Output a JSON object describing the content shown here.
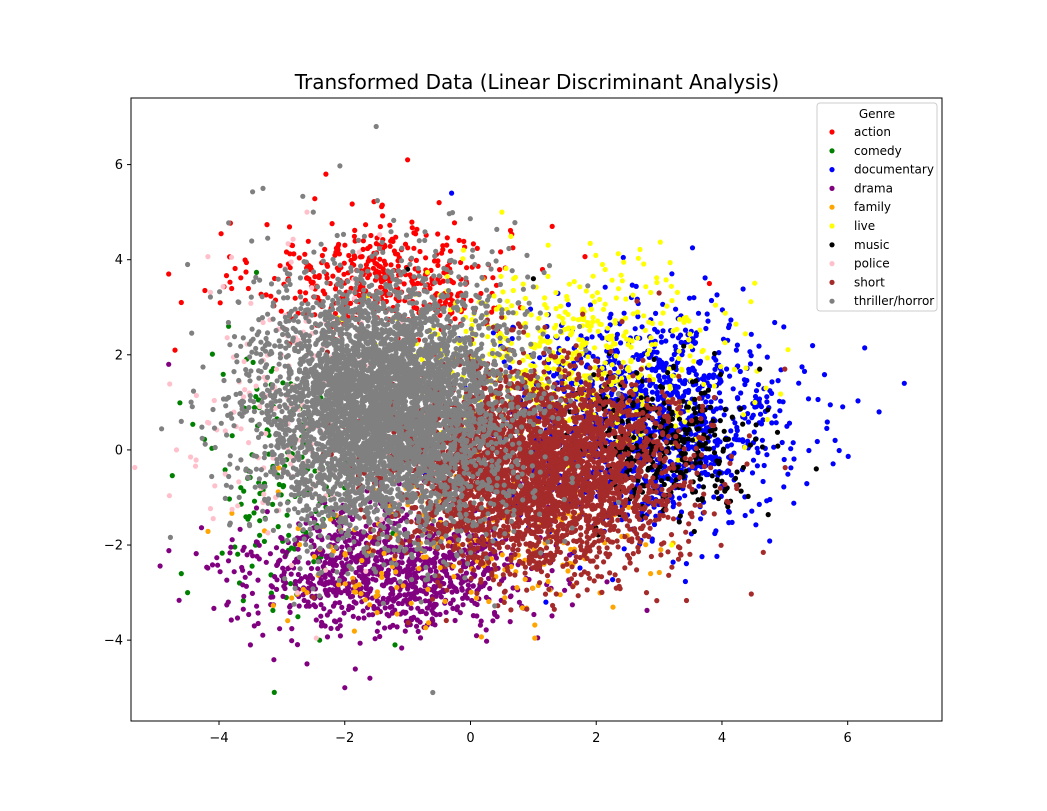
{
  "chart_data": {
    "type": "scatter",
    "title": "Transformed Data (Linear Discriminant Analysis)",
    "xlabel": "",
    "ylabel": "",
    "xlim": [
      -5.4,
      7.5
    ],
    "ylim": [
      -5.7,
      7.4
    ],
    "x_ticks": [
      -4,
      -2,
      0,
      2,
      4,
      6
    ],
    "y_ticks": [
      -4,
      -2,
      0,
      2,
      4,
      6
    ],
    "grid": false,
    "legend": {
      "title": "Genre",
      "placement": "top-right"
    },
    "series": [
      {
        "name": "action",
        "color": "#ff0000",
        "center": [
          -1.4,
          3.6
        ],
        "spread": [
          1.0,
          0.6
        ],
        "count": 450,
        "points": [
          [
            -4.8,
            3.7
          ],
          [
            -4.7,
            2.1
          ],
          [
            -4.6,
            3.1
          ],
          [
            -2.3,
            5.8
          ],
          [
            -1.0,
            6.1
          ],
          [
            -0.5,
            5.2
          ],
          [
            1.3,
            4.7
          ],
          [
            3.8,
            3.5
          ]
        ]
      },
      {
        "name": "comedy",
        "color": "#008000",
        "center": [
          -3.0,
          -0.5
        ],
        "spread": [
          0.6,
          1.4
        ],
        "count": 140,
        "points": [
          [
            -4.6,
            -2.6
          ],
          [
            -4.5,
            -3.0
          ],
          [
            -2.4,
            -4.0
          ],
          [
            -1.2,
            -4.1
          ]
        ]
      },
      {
        "name": "documentary",
        "color": "#0000ff",
        "center": [
          2.8,
          0.6
        ],
        "spread": [
          1.1,
          1.1
        ],
        "count": 1300,
        "points": [
          [
            6.9,
            1.4
          ],
          [
            6.5,
            0.8
          ],
          [
            5.8,
            0.2
          ],
          [
            -0.3,
            5.4
          ],
          [
            1.2,
            -3.2
          ]
        ]
      },
      {
        "name": "drama",
        "color": "#800080",
        "center": [
          -1.3,
          -2.5
        ],
        "spread": [
          1.1,
          0.65
        ],
        "count": 1100,
        "points": [
          [
            -4.8,
            1.8
          ],
          [
            -3.5,
            -4.1
          ],
          [
            -2.6,
            -4.5
          ],
          [
            -2.0,
            -5.0
          ],
          [
            -1.6,
            -4.8
          ]
        ]
      },
      {
        "name": "family",
        "color": "#ffa500",
        "center": [
          -0.3,
          -2.0
        ],
        "spread": [
          1.4,
          0.8
        ],
        "count": 220,
        "points": [
          [
            -2.6,
            -3.0
          ],
          [
            0.2,
            3.6
          ],
          [
            2.5,
            1.0
          ]
        ]
      },
      {
        "name": "live",
        "color": "#ffff00",
        "center": [
          1.6,
          2.0
        ],
        "spread": [
          1.3,
          0.9
        ],
        "count": 550,
        "points": [
          [
            0.5,
            5.0
          ],
          [
            2.1,
            3.9
          ],
          [
            4.7,
            1.3
          ],
          [
            3.2,
            -2.0
          ]
        ]
      },
      {
        "name": "music",
        "color": "#000000",
        "center": [
          3.1,
          0.1
        ],
        "spread": [
          0.7,
          0.7
        ],
        "count": 350,
        "points": [
          [
            5.5,
            -0.4
          ],
          [
            4.6,
            1.7
          ],
          [
            1.0,
            3.6
          ],
          [
            -1.0,
            3.8
          ]
        ]
      },
      {
        "name": "police",
        "color": "#ffc0cb",
        "center": [
          -2.8,
          0.8
        ],
        "spread": [
          0.9,
          1.4
        ],
        "count": 160,
        "points": [
          [
            -2.6,
            5.0
          ],
          [
            -3.9,
            0.4
          ]
        ]
      },
      {
        "name": "short",
        "color": "#a52a2a",
        "center": [
          1.0,
          -0.4
        ],
        "spread": [
          1.1,
          1.0
        ],
        "count": 3500,
        "points": [
          [
            5.0,
            1.7
          ],
          [
            2.8,
            -3.0
          ],
          [
            -2.5,
            -3.1
          ],
          [
            3.0,
            3.3
          ]
        ]
      },
      {
        "name": "thriller/horror",
        "color": "#808080",
        "center": [
          -1.4,
          0.9
        ],
        "spread": [
          1.0,
          1.3
        ],
        "count": 5000,
        "points": [
          [
            -1.5,
            6.8
          ],
          [
            -3.3,
            5.5
          ],
          [
            -4.6,
            0.6
          ],
          [
            -4.5,
            3.9
          ],
          [
            -0.6,
            -5.1
          ],
          [
            -2.5,
            5.0
          ]
        ]
      }
    ]
  }
}
